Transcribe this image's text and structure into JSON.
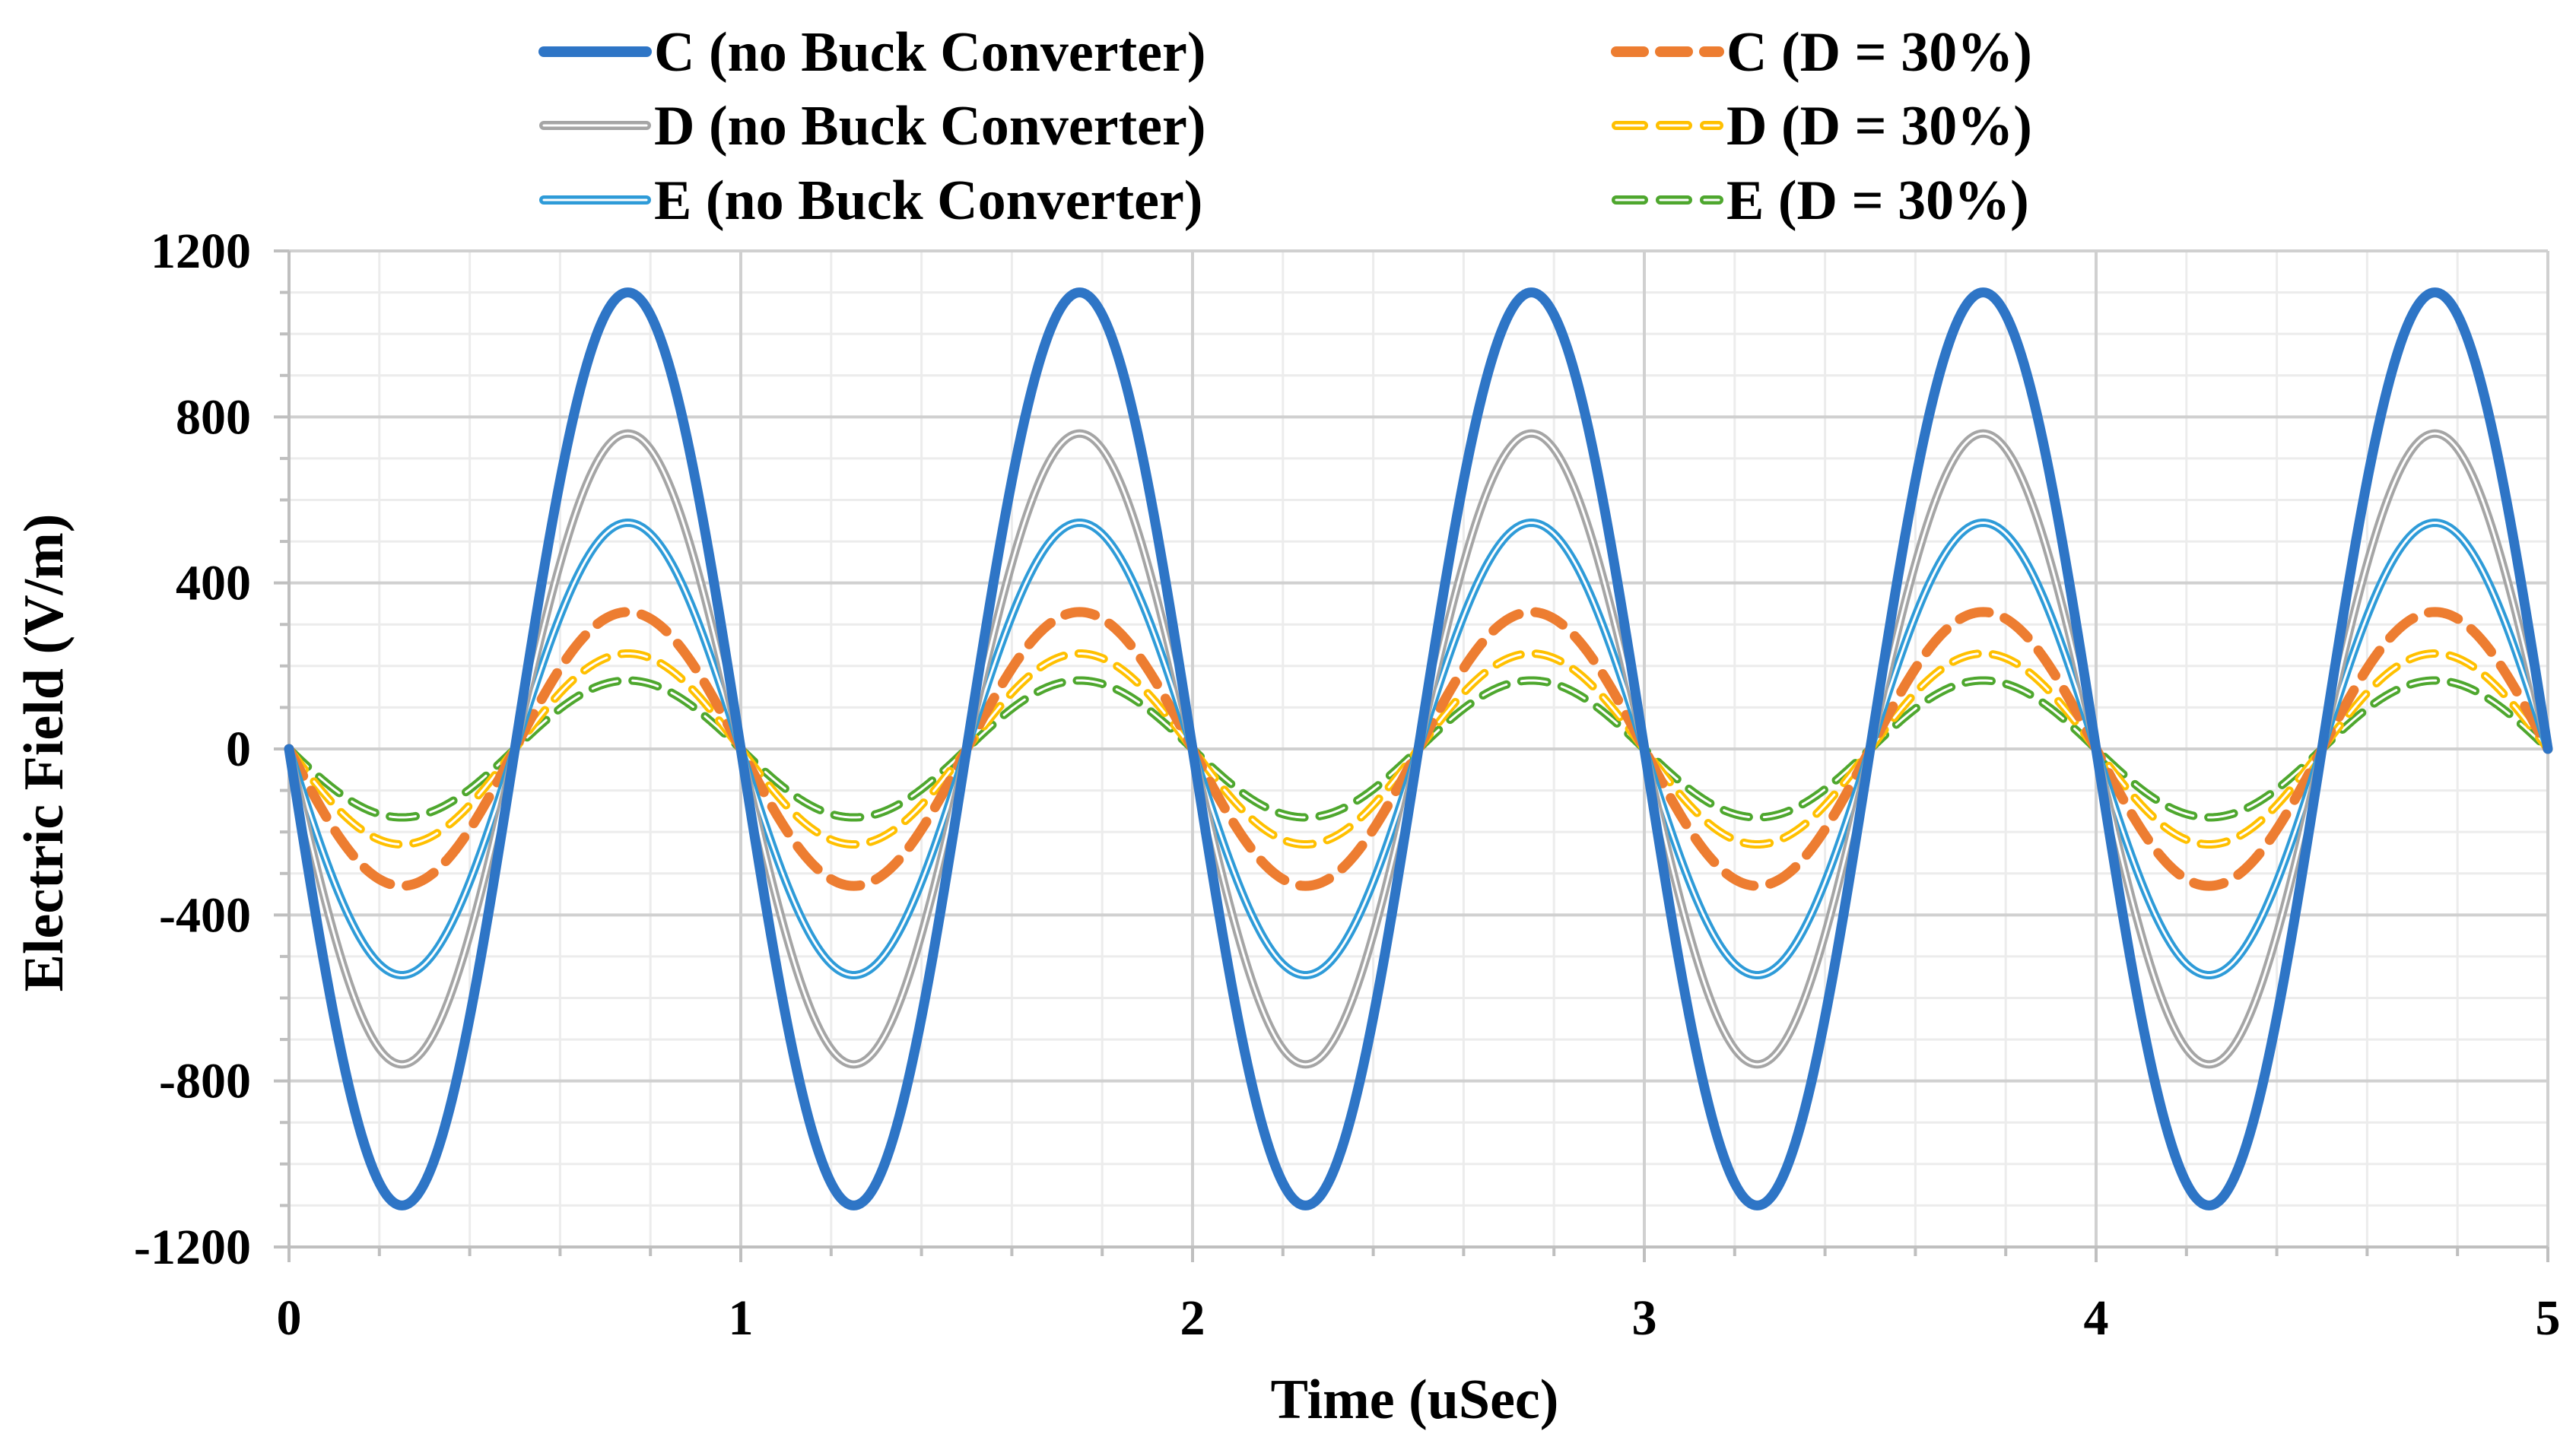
{
  "chart_data": {
    "type": "line",
    "title": "",
    "xlabel": "Time (uSec)",
    "ylabel": "Electric Field (V/m)",
    "xlim": [
      0,
      5
    ],
    "ylim": [
      -1200,
      1200
    ],
    "x_ticks": [
      0,
      1,
      2,
      3,
      4,
      5
    ],
    "x_tick_labels": [
      "0",
      "1",
      "2",
      "3",
      "4",
      "5"
    ],
    "y_ticks": [
      -1200,
      -800,
      -400,
      0,
      400,
      800,
      1200
    ],
    "y_tick_labels": [
      "-1200",
      "-800",
      "-400",
      "0",
      "400",
      "800",
      "1200"
    ],
    "grid": true,
    "legend_position": "top",
    "waveform": "E(t) = -A * sin(2*pi*t), period 1 uSec",
    "series": [
      {
        "name": "C (no Buck Converter)",
        "amplitude": 1100,
        "color": "#2E75C6",
        "style": "solid"
      },
      {
        "name": "D (no Buck Converter)",
        "amplitude": 760,
        "color": "#A5A5A5",
        "style": "double"
      },
      {
        "name": "E (no Buck Converter)",
        "amplitude": 545,
        "color": "#2E9BD8",
        "style": "double"
      },
      {
        "name": "C (D = 30%)",
        "amplitude": 330,
        "color": "#ED7D31",
        "style": "dashed"
      },
      {
        "name": "D (D = 30%)",
        "amplitude": 230,
        "color": "#FFC000",
        "style": "double-dashed"
      },
      {
        "name": "E (D = 30%)",
        "amplitude": 165,
        "color": "#4EA72E",
        "style": "double-dashed"
      }
    ]
  }
}
